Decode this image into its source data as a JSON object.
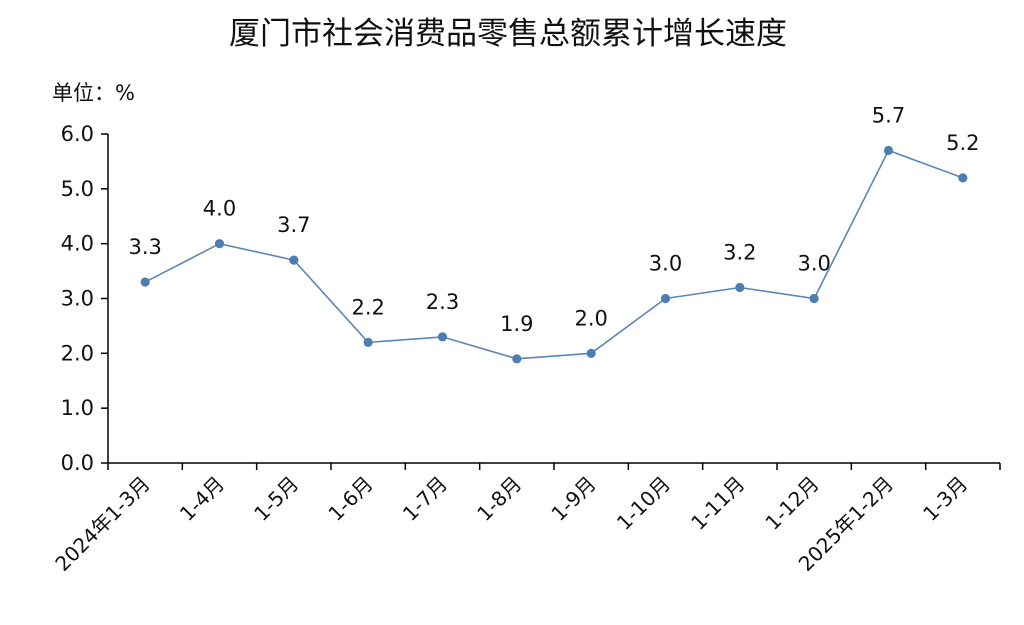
{
  "chart_data": {
    "type": "line",
    "title": "厦门市社会消费品零售总额累计增长速度",
    "unit_label": "单位：%",
    "categories": [
      "2024年1-3月",
      "1-4月",
      "1-5月",
      "1-6月",
      "1-7月",
      "1-8月",
      "1-9月",
      "1-10月",
      "1-11月",
      "1-12月",
      "2025年1-2月",
      "1-3月"
    ],
    "series": [
      {
        "values": [
          3.3,
          4.0,
          3.7,
          2.2,
          2.3,
          1.9,
          2.0,
          3.0,
          3.2,
          3.0,
          5.7,
          5.2
        ]
      }
    ],
    "data_labels": [
      "3.3",
      "4.0",
      "3.7",
      "2.2",
      "2.3",
      "1.9",
      "2.0",
      "3.0",
      "3.2",
      "3.0",
      "5.7",
      "5.2"
    ],
    "yticks": [
      "0.0",
      "1.0",
      "2.0",
      "3.0",
      "4.0",
      "5.0",
      "6.0"
    ],
    "ylim": [
      0,
      6
    ],
    "grid": false,
    "colors": {
      "line": "#5b86b5",
      "marker": "#4f7db1",
      "axis": "#000000"
    }
  }
}
